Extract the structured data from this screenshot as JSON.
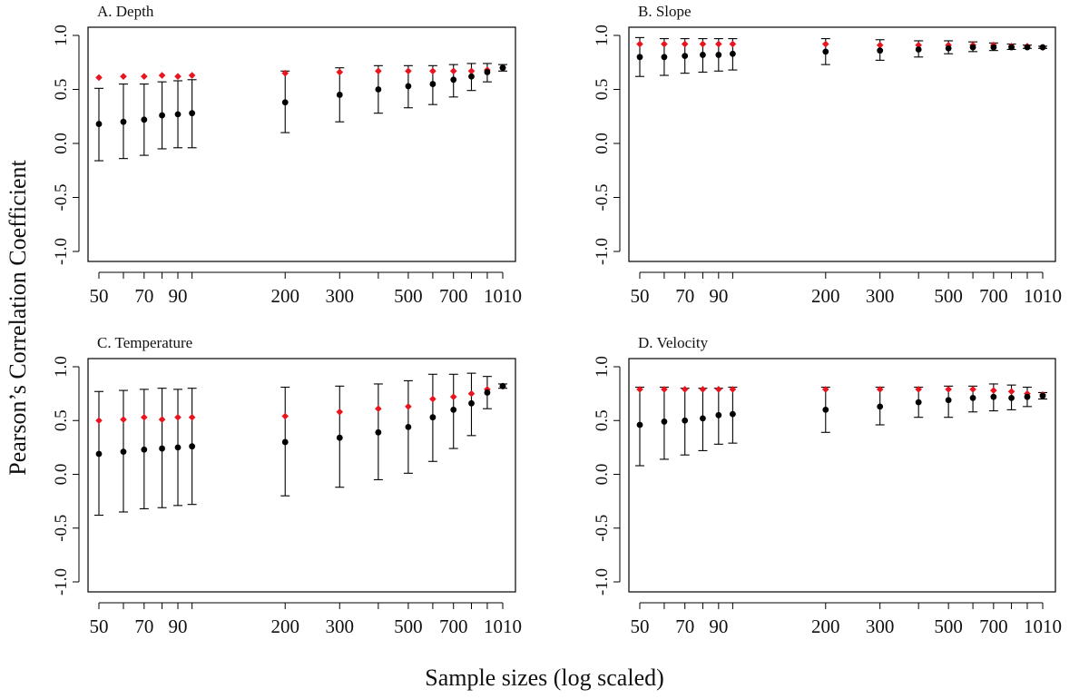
{
  "figure": {
    "ylabel": "Pearson’s Correlation Coefficient",
    "xlabel": "Sample sizes (log scaled)"
  },
  "colors": {
    "mean": "#000000",
    "reference": "#e8141e",
    "axis": "#000000"
  },
  "chart_data": [
    {
      "type": "scatter",
      "title": "A. Depth",
      "x": [
        50,
        60,
        70,
        80,
        90,
        100,
        200,
        300,
        400,
        500,
        600,
        700,
        800,
        900,
        1010
      ],
      "xticks": [
        "50",
        "70",
        "90",
        "200",
        "300",
        "500",
        "700",
        "1010"
      ],
      "xtick_values": [
        50,
        70,
        90,
        200,
        300,
        500,
        700,
        1010
      ],
      "yticks": [
        "-1.0",
        "-0.5",
        "0.0",
        "0.5",
        "1.0"
      ],
      "ylim": [
        -1.0,
        1.0
      ],
      "xscale": "log",
      "series": [
        {
          "marker": "circle",
          "color": "#000000",
          "values": [
            0.18,
            0.2,
            0.22,
            0.26,
            0.27,
            0.28,
            0.38,
            0.45,
            0.5,
            0.53,
            0.55,
            0.59,
            0.62,
            0.66,
            0.7
          ],
          "lower": [
            -0.16,
            -0.14,
            -0.11,
            -0.05,
            -0.04,
            -0.04,
            0.1,
            0.2,
            0.28,
            0.33,
            0.36,
            0.43,
            0.49,
            0.57,
            0.67
          ],
          "upper": [
            0.51,
            0.55,
            0.55,
            0.57,
            0.58,
            0.59,
            0.67,
            0.7,
            0.72,
            0.72,
            0.72,
            0.73,
            0.74,
            0.74,
            0.73
          ]
        },
        {
          "marker": "diamond",
          "color": "#e8141e",
          "values": [
            0.61,
            0.62,
            0.62,
            0.63,
            0.62,
            0.63,
            0.65,
            0.66,
            0.67,
            0.67,
            0.67,
            0.67,
            0.67,
            0.68,
            0.7
          ]
        }
      ]
    },
    {
      "type": "scatter",
      "title": "B. Slope",
      "x": [
        50,
        60,
        70,
        80,
        90,
        100,
        200,
        300,
        400,
        500,
        600,
        700,
        800,
        900,
        1010
      ],
      "xticks": [
        "50",
        "70",
        "90",
        "200",
        "300",
        "500",
        "700",
        "1010"
      ],
      "xtick_values": [
        50,
        70,
        90,
        200,
        300,
        500,
        700,
        1010
      ],
      "yticks": [
        "-1.0",
        "-0.5",
        "0.0",
        "0.5",
        "1.0"
      ],
      "ylim": [
        -1.0,
        1.0
      ],
      "xscale": "log",
      "series": [
        {
          "marker": "circle",
          "color": "#000000",
          "values": [
            0.8,
            0.8,
            0.81,
            0.82,
            0.82,
            0.83,
            0.85,
            0.86,
            0.87,
            0.88,
            0.89,
            0.89,
            0.89,
            0.89,
            0.89
          ],
          "lower": [
            0.62,
            0.63,
            0.65,
            0.66,
            0.67,
            0.68,
            0.73,
            0.77,
            0.8,
            0.83,
            0.85,
            0.86,
            0.87,
            0.88,
            0.88
          ],
          "upper": [
            0.98,
            0.97,
            0.97,
            0.97,
            0.97,
            0.97,
            0.97,
            0.96,
            0.95,
            0.95,
            0.94,
            0.93,
            0.92,
            0.91,
            0.9
          ]
        },
        {
          "marker": "diamond",
          "color": "#e8141e",
          "values": [
            0.92,
            0.92,
            0.92,
            0.92,
            0.92,
            0.92,
            0.92,
            0.91,
            0.91,
            0.91,
            0.91,
            0.91,
            0.9,
            0.9,
            0.89
          ]
        }
      ]
    },
    {
      "type": "scatter",
      "title": "C. Temperature",
      "x": [
        50,
        60,
        70,
        80,
        90,
        100,
        200,
        300,
        400,
        500,
        600,
        700,
        800,
        900,
        1010
      ],
      "xticks": [
        "50",
        "70",
        "90",
        "200",
        "300",
        "500",
        "700",
        "1010"
      ],
      "xtick_values": [
        50,
        70,
        90,
        200,
        300,
        500,
        700,
        1010
      ],
      "yticks": [
        "-1.0",
        "-0.5",
        "0.0",
        "0.5",
        "1.0"
      ],
      "ylim": [
        -1.0,
        1.0
      ],
      "xscale": "log",
      "series": [
        {
          "marker": "circle",
          "color": "#000000",
          "values": [
            0.19,
            0.21,
            0.23,
            0.24,
            0.25,
            0.26,
            0.3,
            0.34,
            0.39,
            0.44,
            0.53,
            0.6,
            0.66,
            0.76,
            0.82
          ],
          "lower": [
            -0.38,
            -0.35,
            -0.32,
            -0.31,
            -0.29,
            -0.28,
            -0.2,
            -0.12,
            -0.05,
            0.01,
            0.12,
            0.24,
            0.36,
            0.61,
            0.8
          ],
          "upper": [
            0.77,
            0.78,
            0.79,
            0.8,
            0.79,
            0.8,
            0.81,
            0.82,
            0.84,
            0.87,
            0.93,
            0.93,
            0.94,
            0.91,
            0.84
          ]
        },
        {
          "marker": "diamond",
          "color": "#e8141e",
          "values": [
            0.5,
            0.51,
            0.53,
            0.51,
            0.53,
            0.53,
            0.54,
            0.58,
            0.61,
            0.63,
            0.7,
            0.72,
            0.75,
            0.79,
            0.82
          ]
        }
      ]
    },
    {
      "type": "scatter",
      "title": "D. Velocity",
      "x": [
        50,
        60,
        70,
        80,
        90,
        100,
        200,
        300,
        400,
        500,
        600,
        700,
        800,
        900,
        1010
      ],
      "xticks": [
        "50",
        "70",
        "90",
        "200",
        "300",
        "500",
        "700",
        "1010"
      ],
      "xtick_values": [
        50,
        70,
        90,
        200,
        300,
        500,
        700,
        1010
      ],
      "yticks": [
        "-1.0",
        "-0.5",
        "0.0",
        "0.5",
        "1.0"
      ],
      "ylim": [
        -1.0,
        1.0
      ],
      "xscale": "log",
      "series": [
        {
          "marker": "circle",
          "color": "#000000",
          "values": [
            0.46,
            0.49,
            0.5,
            0.52,
            0.55,
            0.56,
            0.6,
            0.63,
            0.67,
            0.69,
            0.71,
            0.72,
            0.71,
            0.72,
            0.73
          ],
          "lower": [
            0.08,
            0.14,
            0.18,
            0.22,
            0.28,
            0.29,
            0.39,
            0.46,
            0.53,
            0.53,
            0.58,
            0.59,
            0.6,
            0.63,
            0.7
          ],
          "upper": [
            0.81,
            0.81,
            0.8,
            0.8,
            0.8,
            0.81,
            0.81,
            0.81,
            0.81,
            0.82,
            0.82,
            0.84,
            0.83,
            0.81,
            0.76
          ]
        },
        {
          "marker": "diamond",
          "color": "#e8141e",
          "values": [
            0.79,
            0.79,
            0.79,
            0.79,
            0.79,
            0.79,
            0.79,
            0.79,
            0.79,
            0.79,
            0.79,
            0.78,
            0.77,
            0.75,
            0.74
          ]
        }
      ]
    }
  ]
}
